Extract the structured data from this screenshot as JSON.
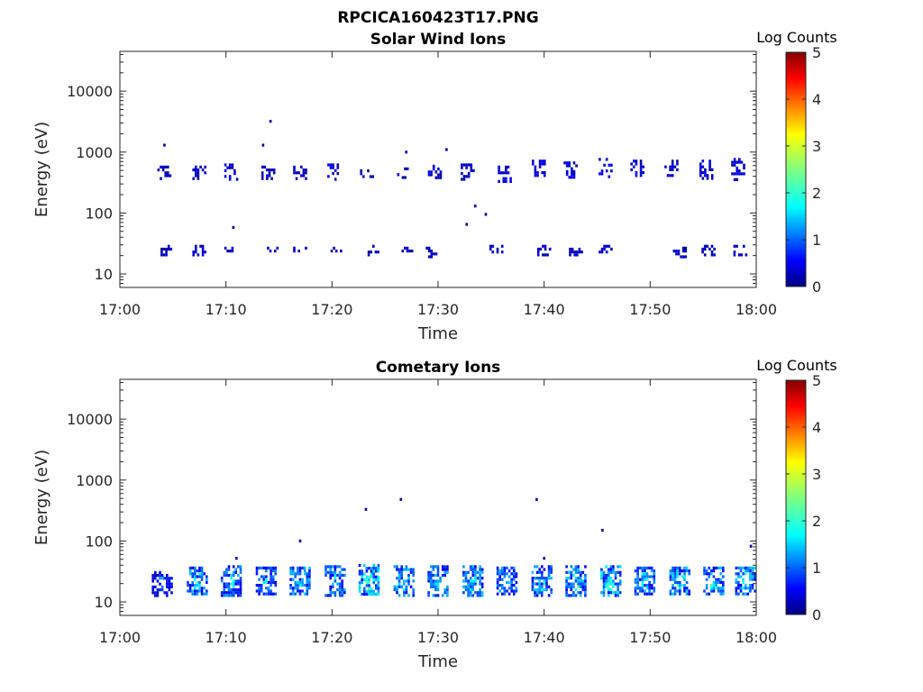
{
  "figure": {
    "title": "RPCICA160423T17.PNG"
  },
  "chart_data": [
    {
      "type": "heatmap",
      "title": "Solar Wind Ions",
      "xlabel": "Time",
      "ylabel": "Energy (eV)",
      "x_scale": "time",
      "y_scale": "log",
      "xlim": [
        "17:00",
        "18:00"
      ],
      "ylim": [
        6,
        45000
      ],
      "x_ticks": [
        "17:00",
        "17:10",
        "17:20",
        "17:30",
        "17:40",
        "17:50",
        "18:00"
      ],
      "y_ticks": [
        "10",
        "100",
        "1000",
        "10000"
      ],
      "colorbar": {
        "label": "Log Counts",
        "range": [
          0,
          5
        ],
        "ticks": [
          "0",
          "1",
          "2",
          "3",
          "4",
          "5"
        ],
        "colormap": "jet"
      },
      "bursts": [
        {
          "time": "17:04.2",
          "energy_low": 350,
          "energy_high": 600,
          "log_counts": 0.3
        },
        {
          "time": "17:07.5",
          "energy_low": 350,
          "energy_high": 600,
          "log_counts": 0.3
        },
        {
          "time": "17:10.5",
          "energy_low": 350,
          "energy_high": 650,
          "log_counts": 0.35
        },
        {
          "time": "17:14.0",
          "energy_low": 380,
          "energy_high": 600,
          "log_counts": 0.3
        },
        {
          "time": "17:17.0",
          "energy_low": 350,
          "energy_high": 600,
          "log_counts": 0.3
        },
        {
          "time": "17:20.0",
          "energy_low": 350,
          "energy_high": 650,
          "log_counts": 0.35
        },
        {
          "time": "17:23.3",
          "energy_low": 400,
          "energy_high": 520,
          "log_counts": 0.3
        },
        {
          "time": "17:26.8",
          "energy_low": 400,
          "energy_high": 560,
          "log_counts": 0.3
        },
        {
          "time": "17:29.7",
          "energy_low": 380,
          "energy_high": 620,
          "log_counts": 0.35
        },
        {
          "time": "17:32.8",
          "energy_low": 350,
          "energy_high": 650,
          "log_counts": 0.35
        },
        {
          "time": "17:36.3",
          "energy_low": 340,
          "energy_high": 600,
          "log_counts": 0.35
        },
        {
          "time": "17:39.5",
          "energy_low": 420,
          "energy_high": 750,
          "log_counts": 0.4
        },
        {
          "time": "17:42.5",
          "energy_low": 400,
          "energy_high": 700,
          "log_counts": 0.35
        },
        {
          "time": "17:45.8",
          "energy_low": 400,
          "energy_high": 800,
          "log_counts": 0.4
        },
        {
          "time": "17:48.8",
          "energy_low": 400,
          "energy_high": 750,
          "log_counts": 0.35
        },
        {
          "time": "17:52.0",
          "energy_low": 400,
          "energy_high": 750,
          "log_counts": 0.35
        },
        {
          "time": "17:55.3",
          "energy_low": 350,
          "energy_high": 750,
          "log_counts": 0.35
        },
        {
          "time": "17:58.3",
          "energy_low": 350,
          "energy_high": 800,
          "log_counts": 0.4
        },
        {
          "time": "17:04.5",
          "energy_low": 20,
          "energy_high": 30,
          "log_counts": 0.3
        },
        {
          "time": "17:07.5",
          "energy_low": 20,
          "energy_high": 30,
          "log_counts": 0.3
        },
        {
          "time": "17:10.5",
          "energy_low": 24,
          "energy_high": 28,
          "log_counts": 0.3
        },
        {
          "time": "17:14.3",
          "energy_low": 24,
          "energy_high": 28,
          "log_counts": 0.3
        },
        {
          "time": "17:17.0",
          "energy_low": 24,
          "energy_high": 28,
          "log_counts": 0.3
        },
        {
          "time": "17:20.3",
          "energy_low": 24,
          "energy_high": 28,
          "log_counts": 0.3
        },
        {
          "time": "17:23.8",
          "energy_low": 20,
          "energy_high": 30,
          "log_counts": 0.3
        },
        {
          "time": "17:27.0",
          "energy_low": 24,
          "energy_high": 28,
          "log_counts": 0.3
        },
        {
          "time": "17:29.5",
          "energy_low": 20,
          "energy_high": 28,
          "log_counts": 0.3
        },
        {
          "time": "17:35.5",
          "energy_low": 24,
          "energy_high": 30,
          "log_counts": 0.3
        },
        {
          "time": "17:40.0",
          "energy_low": 20,
          "energy_high": 30,
          "log_counts": 0.3
        },
        {
          "time": "17:43.0",
          "energy_low": 20,
          "energy_high": 30,
          "log_counts": 0.3
        },
        {
          "time": "17:45.8",
          "energy_low": 24,
          "energy_high": 30,
          "log_counts": 0.3
        },
        {
          "time": "17:52.8",
          "energy_low": 20,
          "energy_high": 28,
          "log_counts": 0.3
        },
        {
          "time": "17:55.5",
          "energy_low": 20,
          "energy_high": 30,
          "log_counts": 0.3
        },
        {
          "time": "17:58.5",
          "energy_low": 20,
          "energy_high": 30,
          "log_counts": 0.3
        }
      ],
      "isolated_points": [
        {
          "time": "17:14.2",
          "energy": 3200,
          "log_counts": 0.2
        },
        {
          "time": "17:10.7",
          "energy": 58,
          "log_counts": 0.2
        },
        {
          "time": "17:33.5",
          "energy": 130,
          "log_counts": 0.2
        },
        {
          "time": "17:34.5",
          "energy": 95,
          "log_counts": 0.2
        },
        {
          "time": "17:32.7",
          "energy": 65,
          "log_counts": 0.2
        },
        {
          "time": "17:04.2",
          "energy": 1300,
          "log_counts": 0.2
        },
        {
          "time": "17:13.5",
          "energy": 1300,
          "log_counts": 0.2
        },
        {
          "time": "17:27.0",
          "energy": 1000,
          "log_counts": 0.2
        },
        {
          "time": "17:30.8",
          "energy": 1100,
          "log_counts": 0.2
        }
      ]
    },
    {
      "type": "heatmap",
      "title": "Cometary Ions",
      "xlabel": "Time",
      "ylabel": "Energy (eV)",
      "x_scale": "time",
      "y_scale": "log",
      "xlim": [
        "17:00",
        "18:00"
      ],
      "ylim": [
        6,
        45000
      ],
      "x_ticks": [
        "17:00",
        "17:10",
        "17:20",
        "17:30",
        "17:40",
        "17:50",
        "18:00"
      ],
      "y_ticks": [
        "10",
        "100",
        "1000",
        "10000"
      ],
      "colorbar": {
        "label": "Log Counts",
        "range": [
          0,
          5
        ],
        "ticks": [
          "0",
          "1",
          "2",
          "3",
          "4",
          "5"
        ],
        "colormap": "jet"
      },
      "bursts": [
        {
          "time": "17:04.0",
          "energy_low": 13,
          "energy_high": 32,
          "log_counts": 0.5
        },
        {
          "time": "17:07.3",
          "energy_low": 13,
          "energy_high": 38,
          "log_counts": 1.0
        },
        {
          "time": "17:10.5",
          "energy_low": 13,
          "energy_high": 40,
          "log_counts": 0.9
        },
        {
          "time": "17:13.8",
          "energy_low": 13,
          "energy_high": 38,
          "log_counts": 0.8
        },
        {
          "time": "17:17.0",
          "energy_low": 13,
          "energy_high": 38,
          "log_counts": 1.0
        },
        {
          "time": "17:20.3",
          "energy_low": 13,
          "energy_high": 40,
          "log_counts": 0.9
        },
        {
          "time": "17:23.5",
          "energy_low": 13,
          "energy_high": 42,
          "log_counts": 1.1
        },
        {
          "time": "17:26.8",
          "energy_low": 13,
          "energy_high": 40,
          "log_counts": 1.0
        },
        {
          "time": "17:30.0",
          "energy_low": 13,
          "energy_high": 40,
          "log_counts": 0.9
        },
        {
          "time": "17:33.3",
          "energy_low": 13,
          "energy_high": 40,
          "log_counts": 1.0
        },
        {
          "time": "17:36.5",
          "energy_low": 13,
          "energy_high": 38,
          "log_counts": 0.9
        },
        {
          "time": "17:39.8",
          "energy_low": 13,
          "energy_high": 40,
          "log_counts": 1.0
        },
        {
          "time": "17:43.0",
          "energy_low": 13,
          "energy_high": 40,
          "log_counts": 1.0
        },
        {
          "time": "17:46.3",
          "energy_low": 13,
          "energy_high": 40,
          "log_counts": 1.1
        },
        {
          "time": "17:49.5",
          "energy_low": 13,
          "energy_high": 38,
          "log_counts": 0.9
        },
        {
          "time": "17:52.8",
          "energy_low": 13,
          "energy_high": 38,
          "log_counts": 1.1
        },
        {
          "time": "17:56.0",
          "energy_low": 13,
          "energy_high": 38,
          "log_counts": 1.0
        },
        {
          "time": "17:59.0",
          "energy_low": 13,
          "energy_high": 38,
          "log_counts": 1.0
        }
      ],
      "isolated_points": [
        {
          "time": "17:17.0",
          "energy": 100,
          "log_counts": 0.2
        },
        {
          "time": "17:23.2",
          "energy": 330,
          "log_counts": 0.2
        },
        {
          "time": "17:26.5",
          "energy": 480,
          "log_counts": 0.2
        },
        {
          "time": "17:39.3",
          "energy": 480,
          "log_counts": 0.2
        },
        {
          "time": "17:45.5",
          "energy": 150,
          "log_counts": 0.2
        },
        {
          "time": "17:11.0",
          "energy": 52,
          "log_counts": 0.2
        },
        {
          "time": "17:59.5",
          "energy": 82,
          "log_counts": 0.3
        },
        {
          "time": "17:40.0",
          "energy": 52,
          "log_counts": 0.2
        }
      ]
    }
  ]
}
